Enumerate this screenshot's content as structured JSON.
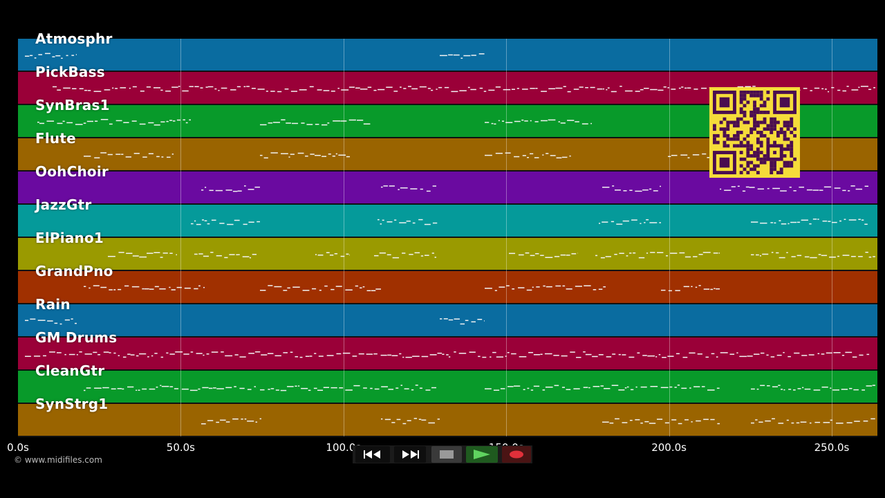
{
  "tracks": [
    {
      "name": "Atmosphr",
      "color": "#0a6ca0"
    },
    {
      "name": "PickBass",
      "color": "#9a0038"
    },
    {
      "name": "SynBras1",
      "color": "#089a2a"
    },
    {
      "name": "Flute",
      "color": "#9a6400"
    },
    {
      "name": "OohChoir",
      "color": "#6a0aa0"
    },
    {
      "name": "JazzGtr",
      "color": "#059a9a"
    },
    {
      "name": "ElPiano1",
      "color": "#9a9a00"
    },
    {
      "name": "GrandPno",
      "color": "#a03000"
    },
    {
      "name": "Rain",
      "color": "#0a6ca0"
    },
    {
      "name": "GM Drums",
      "color": "#9a0038"
    },
    {
      "name": "CleanGtr",
      "color": "#089a2a"
    },
    {
      "name": "SynStrg1",
      "color": "#9a6400"
    }
  ],
  "axis": {
    "ticks": [
      "0.0s",
      "50.0s",
      "100.0s",
      "150.0s",
      "200.0s",
      "250.0s"
    ]
  },
  "copyright": "© www.midifiles.com",
  "transport": {
    "rewind_icon": "rewind-icon",
    "fast_forward_icon": "fast-forward-icon",
    "stop_icon": "stop-icon",
    "play_icon": "play-icon",
    "record_icon": "record-icon"
  },
  "qr_icon": "qr-code-icon"
}
